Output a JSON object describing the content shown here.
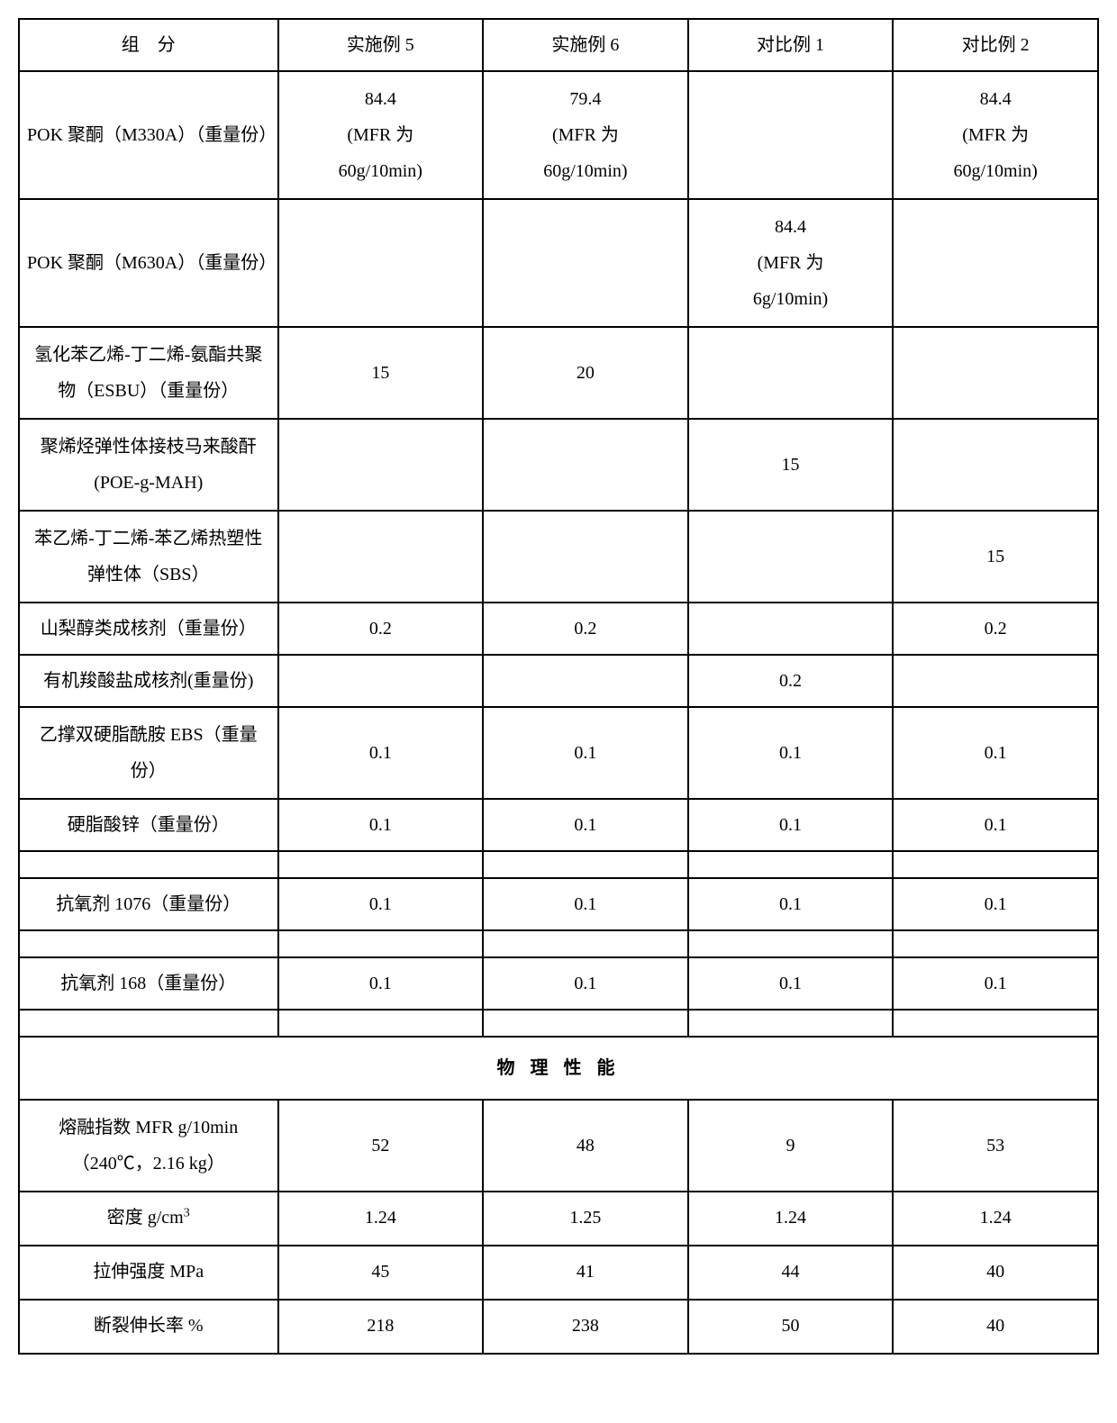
{
  "headers": {
    "col1": "组　分",
    "col2": "实施例 5",
    "col3": "实施例 6",
    "col4": "对比例 1",
    "col5": "对比例 2"
  },
  "rows": [
    {
      "label": "POK 聚酮（M330A）（重量份）",
      "c2": "84.4\n(MFR 为\n60g/10min)",
      "c3": "79.4\n(MFR 为\n60g/10min)",
      "c4": "",
      "c5": "84.4\n(MFR 为\n60g/10min)"
    },
    {
      "label": "POK 聚酮（M630A）（重量份）",
      "c2": "",
      "c3": "",
      "c4": "84.4\n(MFR 为\n6g/10min)",
      "c5": ""
    },
    {
      "label": "氢化苯乙烯-丁二烯-氨酯共聚物（ESBU）（重量份）",
      "c2": "15",
      "c3": "20",
      "c4": "",
      "c5": ""
    },
    {
      "label": "聚烯烃弹性体接枝马来酸酐 (POE-g-MAH)",
      "c2": "",
      "c3": "",
      "c4": "15",
      "c5": ""
    },
    {
      "label": "苯乙烯-丁二烯-苯乙烯热塑性弹性体（SBS）",
      "c2": "",
      "c3": "",
      "c4": "",
      "c5": "15"
    },
    {
      "label": "山梨醇类成核剂（重量份）",
      "c2": "0.2",
      "c3": "0.2",
      "c4": "",
      "c5": "0.2"
    },
    {
      "label": "有机羧酸盐成核剂(重量份)",
      "c2": "",
      "c3": "",
      "c4": "0.2",
      "c5": ""
    },
    {
      "label": "乙撑双硬脂酰胺 EBS（重量份）",
      "c2": "0.1",
      "c3": "0.1",
      "c4": "0.1",
      "c5": "0.1"
    },
    {
      "label": "硬脂酸锌（重量份）",
      "c2": "0.1",
      "c3": "0.1",
      "c4": "0.1",
      "c5": "0.1"
    }
  ],
  "emptyRow1": {
    "c1": "",
    "c2": "",
    "c3": "",
    "c4": "",
    "c5": ""
  },
  "row_antiox1076": {
    "label": "抗氧剂 1076（重量份）",
    "c2": "0.1",
    "c3": "0.1",
    "c4": "0.1",
    "c5": "0.1"
  },
  "emptyRow2": {
    "c1": "",
    "c2": "",
    "c3": "",
    "c4": "",
    "c5": ""
  },
  "row_antiox168": {
    "label": "抗氧剂 168（重量份）",
    "c2": "0.1",
    "c3": "0.1",
    "c4": "0.1",
    "c5": "0.1"
  },
  "emptyRow3": {
    "c1": "",
    "c2": "",
    "c3": "",
    "c4": "",
    "c5": ""
  },
  "sectionHeader": "物 理 性 能",
  "physRows": [
    {
      "label": "熔融指数 MFR g/10min  （240℃，2.16 kg）",
      "c2": "52",
      "c3": "48",
      "c4": "9",
      "c5": "53"
    },
    {
      "label_html": "密度 g/cm<sup>3</sup>",
      "label": "密度 g/cm3",
      "c2": "1.24",
      "c3": "1.25",
      "c4": "1.24",
      "c5": "1.24"
    },
    {
      "label": "拉伸强度  MPa",
      "c2": "45",
      "c3": "41",
      "c4": "44",
      "c5": "40"
    },
    {
      "label": "断裂伸长率  %",
      "c2": "218",
      "c3": "238",
      "c4": "50",
      "c5": "40"
    }
  ],
  "styling": {
    "border_color": "#000000",
    "background_color": "#ffffff",
    "text_color": "#000000",
    "font_family": "SimSun",
    "body_fontsize": 20,
    "border_width": 2,
    "col_widths_pct": [
      24,
      19,
      19,
      19,
      19
    ]
  }
}
